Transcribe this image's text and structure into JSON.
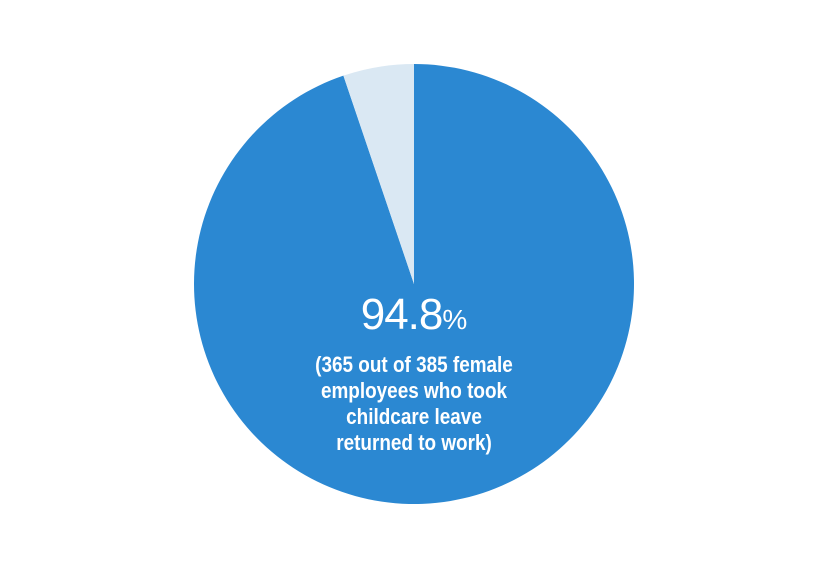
{
  "chart_data": {
    "type": "pie",
    "slices": [
      {
        "value": 94.8,
        "color": "#2b88d2"
      },
      {
        "value": 5.2,
        "color": "#dae8f3"
      }
    ],
    "value_label": {
      "number": "94.8",
      "unit": "%"
    },
    "caption_lines": [
      "(365 out of 385 female",
      "employees who took",
      "childcare leave",
      "returned to work)"
    ]
  }
}
